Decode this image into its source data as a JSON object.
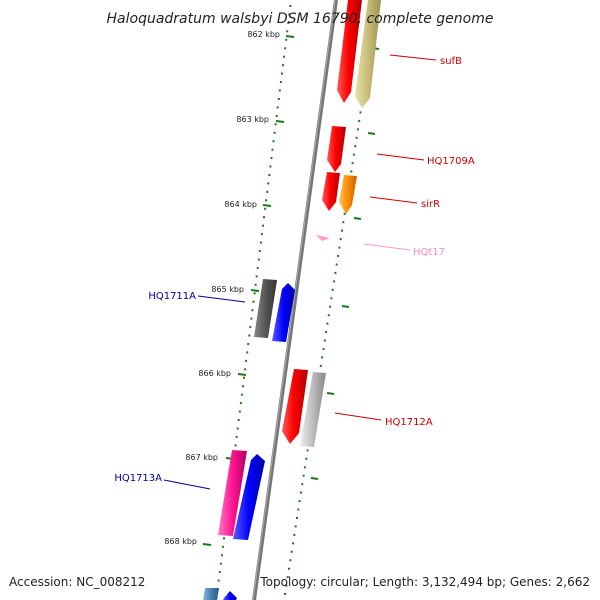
{
  "title": "Haloquadratum walsbyi DSM 16790, complete genome",
  "accession_text": "Accession: NC_008212",
  "topology_text": "Topology: circular; Length: 3,132,494 bp; Genes: 2,662",
  "ticks": [
    "862 kbp",
    "863 kbp",
    "864 kbp",
    "865 kbp",
    "866 kbp",
    "867 kbp",
    "868 kbp"
  ],
  "colors": {
    "backbone": "#808080",
    "tick_marks": "#1a7a1a",
    "label_red": "#cc0000",
    "label_blue": "#000099",
    "label_pink": "#ff88c8"
  },
  "gene_labels": [
    {
      "name": "sufB",
      "color": "#cc0000"
    },
    {
      "name": "HQ1709A",
      "color": "#cc0000"
    },
    {
      "name": "sirR",
      "color": "#cc0000"
    },
    {
      "name": "HQt17",
      "color": "#f08cc4"
    },
    {
      "name": "HQ1711A",
      "color": "#000099"
    },
    {
      "name": "HQ1712A",
      "color": "#cc0000"
    },
    {
      "name": "HQ1713A",
      "color": "#000099"
    }
  ]
}
